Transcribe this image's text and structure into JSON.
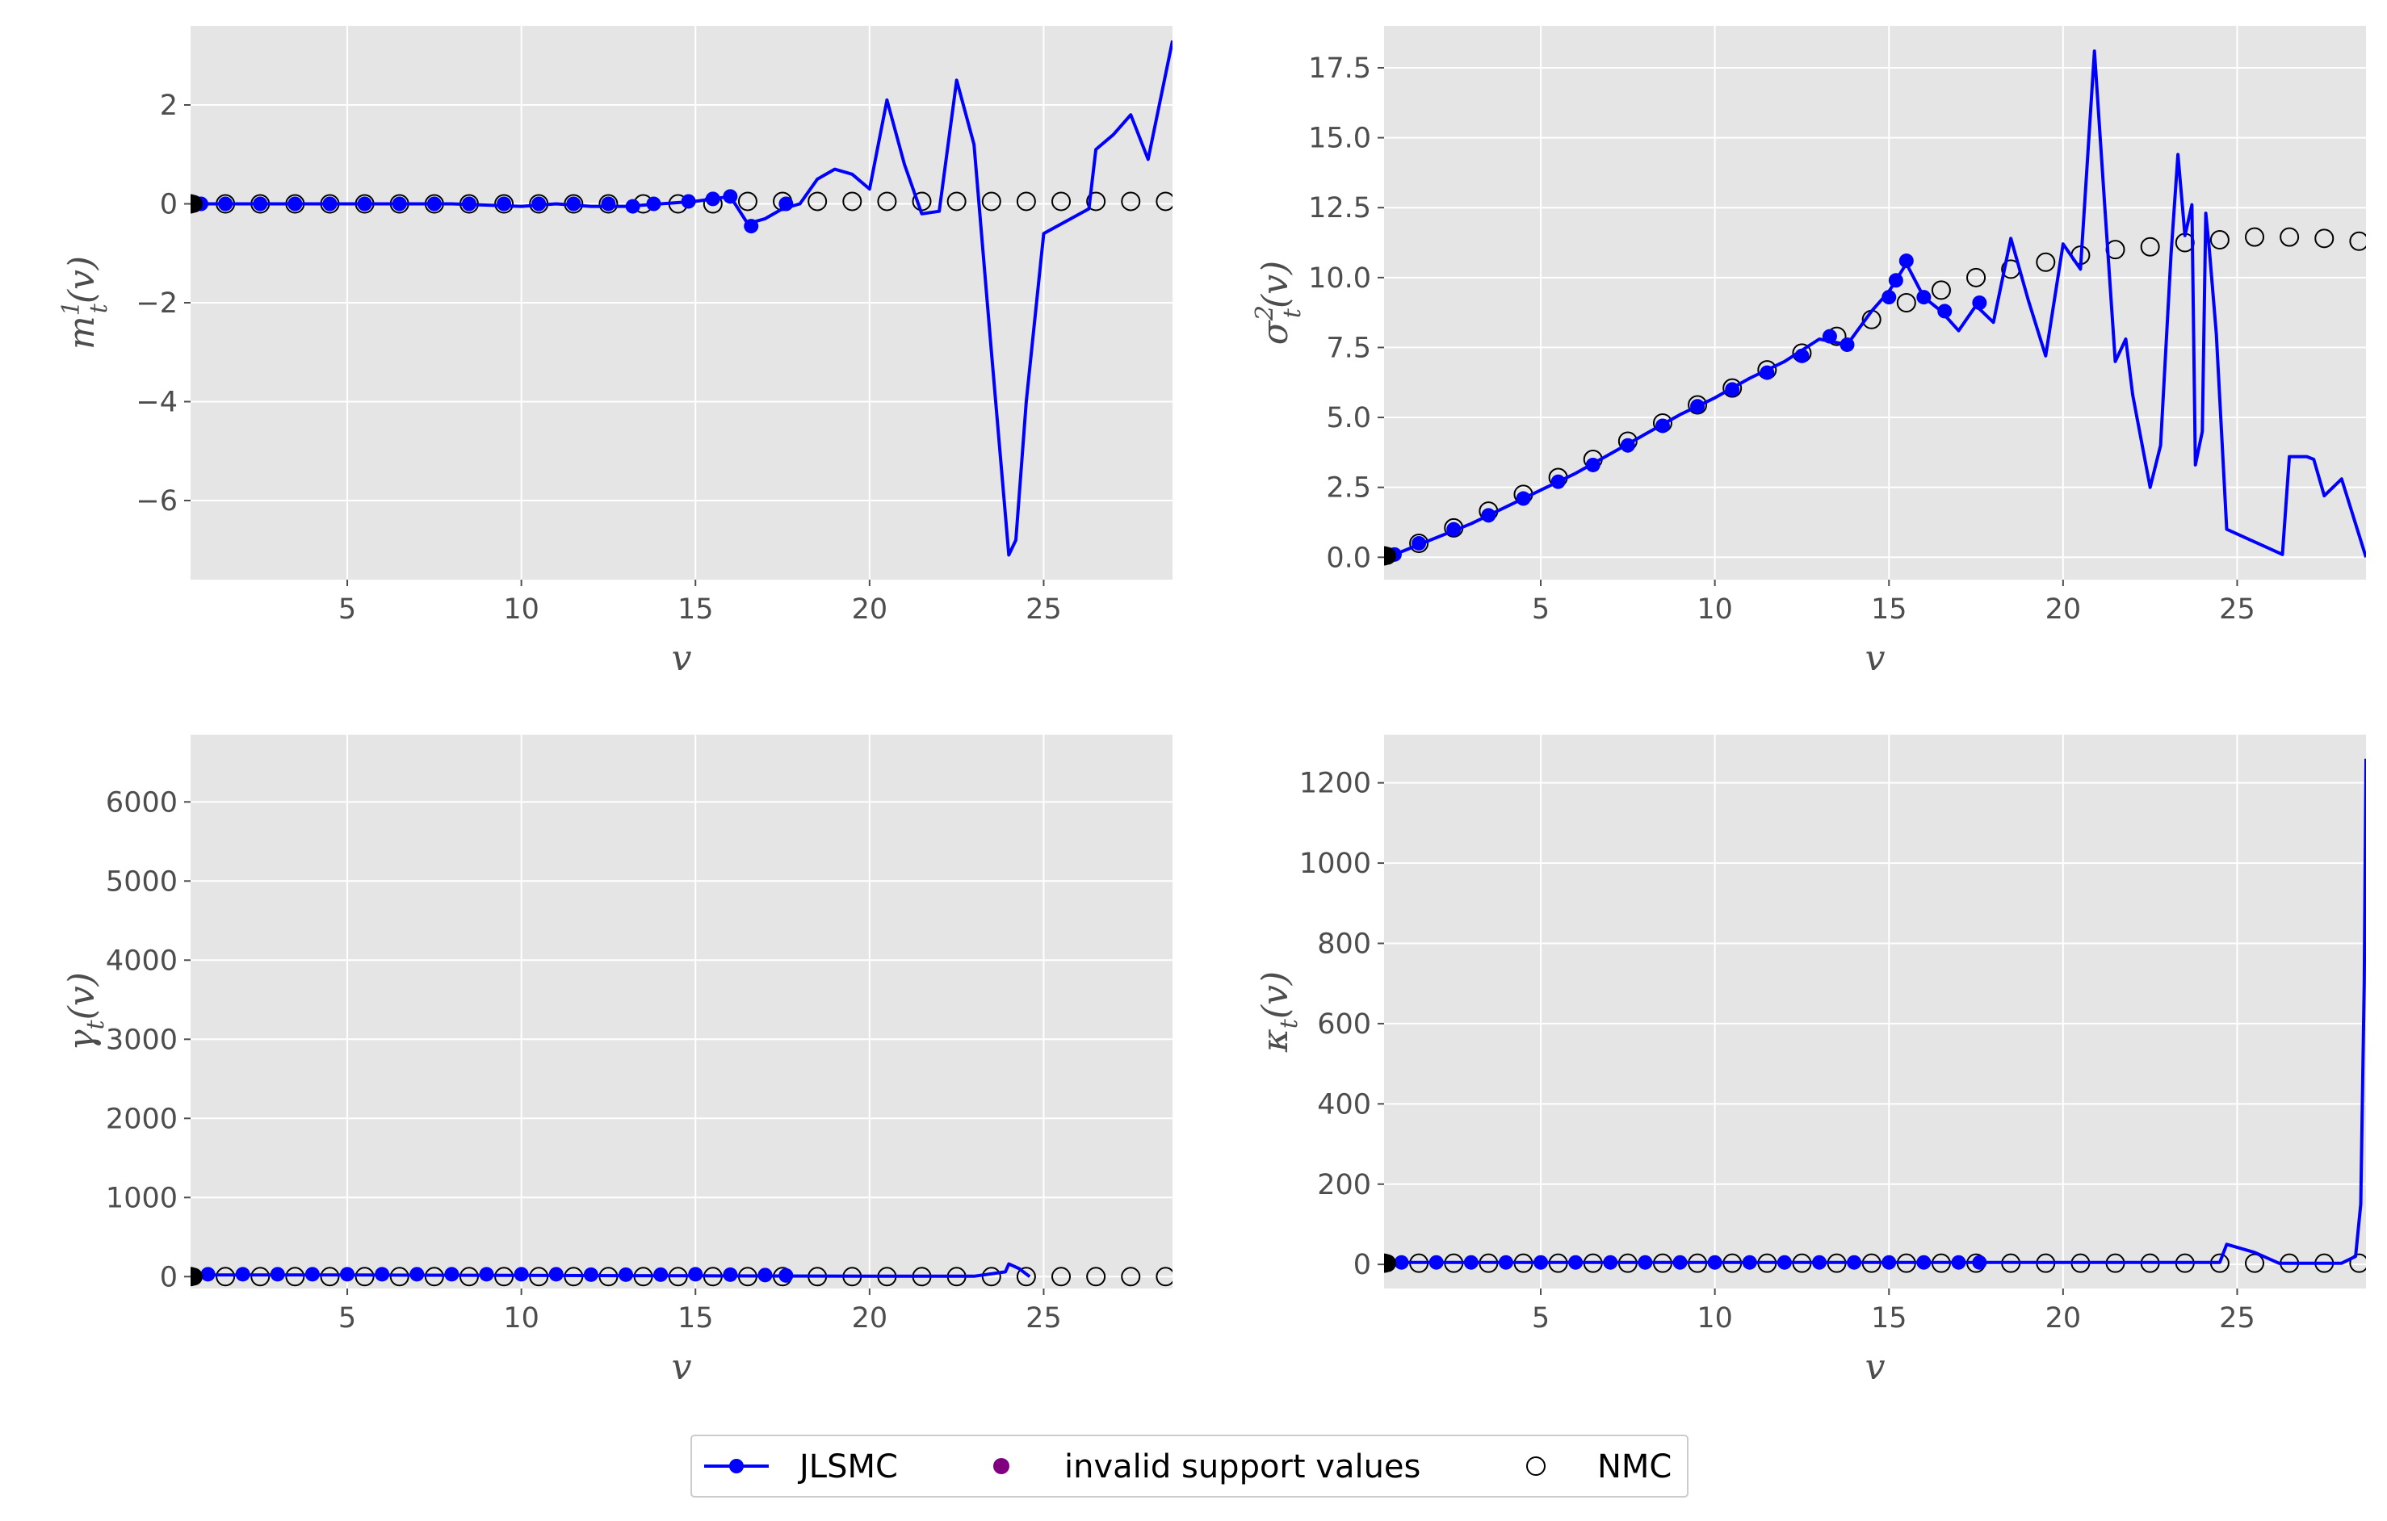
{
  "colors": {
    "panel_bg": "#e5e5e5",
    "grid": "#ffffff",
    "jlsmc": "#0000ff",
    "invalid": "#800080",
    "nmc_edge": "#000000",
    "tick": "#4d4d4d"
  },
  "legend": {
    "placement": "bottom-center",
    "entries": [
      {
        "label": "JLSMC",
        "marker": "line-with-dot",
        "color": "#0000ff"
      },
      {
        "label": "invalid support values",
        "marker": "dot",
        "color": "#800080"
      },
      {
        "label": "NMC",
        "marker": "open-circle",
        "color": "#000000"
      }
    ]
  },
  "chart_data": [
    {
      "type": "line",
      "xlabel": "v",
      "ylabel": {
        "base": "m",
        "sub": "t",
        "sup": "1",
        "arg": "(v)"
      },
      "xlim": [
        0.5,
        28.7
      ],
      "ylim": [
        -7.6,
        3.6
      ],
      "grid": true,
      "xticks": [
        5,
        10,
        15,
        20,
        25
      ],
      "xtick_labels": [
        "5",
        "10",
        "15",
        "20",
        "25"
      ],
      "yticks": [
        -6,
        -4,
        -2,
        0,
        2
      ],
      "ytick_labels": [
        "−6",
        "−4",
        "−2",
        "0",
        "2"
      ],
      "series": [
        {
          "name": "JLSMC",
          "style": "line",
          "x": [
            0.5,
            2,
            4,
            6,
            8,
            10,
            11,
            12,
            13,
            14,
            15,
            15.5,
            16,
            16.5,
            17,
            17.5,
            18,
            18.5,
            19,
            19.5,
            20,
            20.5,
            21,
            21.5,
            22,
            22.5,
            23,
            23.5,
            24,
            24.2,
            24.5,
            25,
            26.3,
            26.5,
            27,
            27.5,
            28,
            28.7
          ],
          "y": [
            0,
            0,
            0,
            0,
            0,
            -0.05,
            0,
            -0.05,
            -0.05,
            0,
            0.05,
            0.1,
            0.15,
            -0.4,
            -0.3,
            -0.1,
            0,
            0.5,
            0.7,
            0.6,
            0.3,
            2.1,
            0.8,
            -0.2,
            -0.15,
            2.5,
            1.2,
            -3.0,
            -7.1,
            -6.8,
            -4.0,
            -0.6,
            -0.1,
            1.1,
            1.4,
            1.8,
            0.9,
            3.3
          ]
        },
        {
          "name": "JLSMC",
          "style": "dots",
          "x": [
            0.8,
            1.5,
            2.5,
            3.5,
            4.5,
            5.5,
            6.5,
            7.5,
            8.5,
            9.5,
            10.5,
            11.5,
            12.5,
            13.2,
            13.8,
            14.8,
            15.5,
            16,
            16.6,
            17.6
          ],
          "y": [
            0,
            0,
            0,
            0,
            0,
            0,
            0,
            0,
            0,
            0,
            0,
            0,
            0,
            -0.05,
            0,
            0.05,
            0.1,
            0.15,
            -0.45,
            0
          ]
        },
        {
          "name": "NMC",
          "style": "open-circle",
          "x": [
            0.5,
            1.5,
            2.5,
            3.5,
            4.5,
            5.5,
            6.5,
            7.5,
            8.5,
            9.5,
            10.5,
            11.5,
            12.5,
            13.5,
            14.5,
            15.5,
            16.5,
            17.5,
            18.5,
            19.5,
            20.5,
            21.5,
            22.5,
            23.5,
            24.5,
            25.5,
            26.5,
            27.5,
            28.5
          ],
          "y": [
            0,
            0,
            0,
            0,
            0,
            0,
            0,
            0,
            0,
            0,
            0,
            0,
            0,
            0,
            0,
            0,
            0.05,
            0.05,
            0.05,
            0.05,
            0.05,
            0.05,
            0.05,
            0.05,
            0.05,
            0.05,
            0.05,
            0.05,
            0.05
          ]
        }
      ]
    },
    {
      "type": "line",
      "xlabel": "v",
      "ylabel": {
        "base": "σ",
        "sub": "t",
        "sup": "2",
        "arg": "(v)"
      },
      "xlim": [
        0.5,
        28.7
      ],
      "ylim": [
        -0.8,
        19.0
      ],
      "grid": true,
      "xticks": [
        5,
        10,
        15,
        20,
        25
      ],
      "xtick_labels": [
        "5",
        "10",
        "15",
        "20",
        "25"
      ],
      "yticks": [
        0,
        2.5,
        5,
        7.5,
        10,
        12.5,
        15,
        17.5
      ],
      "ytick_labels": [
        "0.0",
        "2.5",
        "5.0",
        "7.5",
        "10.0",
        "12.5",
        "15.0",
        "17.5"
      ],
      "series": [
        {
          "name": "JLSMC",
          "style": "line",
          "x": [
            0.5,
            1,
            2,
            3,
            4,
            5,
            6,
            7,
            8,
            9,
            10,
            11,
            12,
            13,
            13.8,
            14.5,
            15,
            15.5,
            16,
            16.5,
            17,
            17.5,
            18,
            18.5,
            19,
            19.5,
            20,
            20.5,
            20.9,
            21.2,
            21.5,
            21.8,
            22,
            22.5,
            22.8,
            23.1,
            23.3,
            23.5,
            23.7,
            23.8,
            24,
            24.1,
            24.2,
            24.4,
            24.7,
            26.3,
            26.5,
            27,
            27.2,
            27.5,
            28,
            28.7
          ],
          "y": [
            0,
            0.2,
            0.7,
            1.2,
            1.8,
            2.4,
            3.0,
            3.7,
            4.4,
            5.1,
            5.7,
            6.4,
            7.0,
            7.8,
            7.6,
            8.8,
            9.5,
            10.5,
            9.3,
            8.8,
            8.1,
            9.0,
            8.4,
            11.4,
            9.2,
            7.2,
            11.2,
            10.3,
            18.1,
            12.5,
            7.0,
            7.8,
            5.8,
            2.5,
            4.0,
            10.8,
            14.4,
            11.5,
            12.6,
            3.3,
            4.5,
            12.3,
            11.0,
            8.0,
            1.0,
            0.1,
            3.6,
            3.6,
            3.5,
            2.2,
            2.8,
            0.0
          ]
        },
        {
          "name": "JLSMC",
          "style": "dots",
          "x": [
            0.8,
            1.5,
            2.5,
            3.5,
            4.5,
            5.5,
            6.5,
            7.5,
            8.5,
            9.5,
            10.5,
            11.5,
            12.5,
            13.3,
            13.8,
            15,
            15.2,
            15.5,
            16,
            16.6,
            17.6
          ],
          "y": [
            0.1,
            0.5,
            1.0,
            1.5,
            2.1,
            2.7,
            3.3,
            4.0,
            4.7,
            5.4,
            6.0,
            6.6,
            7.2,
            7.9,
            7.6,
            9.3,
            9.9,
            10.6,
            9.3,
            8.8,
            9.1
          ]
        },
        {
          "name": "NMC",
          "style": "open-circle",
          "x": [
            0.5,
            1.5,
            2.5,
            3.5,
            4.5,
            5.5,
            6.5,
            7.5,
            8.5,
            9.5,
            10.5,
            11.5,
            12.5,
            13.5,
            14.5,
            15.5,
            16.5,
            17.5,
            18.5,
            19.5,
            20.5,
            21.5,
            22.5,
            23.5,
            24.5,
            25.5,
            26.5,
            27.5,
            28.5
          ],
          "y": [
            0.05,
            0.5,
            1.05,
            1.65,
            2.25,
            2.85,
            3.5,
            4.15,
            4.8,
            5.45,
            6.05,
            6.7,
            7.3,
            7.9,
            8.5,
            9.1,
            9.55,
            10.0,
            10.3,
            10.55,
            10.8,
            11.0,
            11.1,
            11.25,
            11.35,
            11.45,
            11.45,
            11.4,
            11.3
          ]
        }
      ]
    },
    {
      "type": "line",
      "xlabel": "v",
      "ylabel": {
        "base": "γ",
        "sub": "t",
        "sup": "",
        "arg": "(v)"
      },
      "xlim": [
        0.5,
        28.7
      ],
      "ylim": [
        -150,
        6850
      ],
      "grid": true,
      "xticks": [
        5,
        10,
        15,
        20,
        25
      ],
      "xtick_labels": [
        "5",
        "10",
        "15",
        "20",
        "25"
      ],
      "yticks": [
        0,
        1000,
        2000,
        3000,
        4000,
        5000,
        6000
      ],
      "ytick_labels": [
        "0",
        "1000",
        "2000",
        "3000",
        "4000",
        "5000",
        "6000"
      ],
      "series": [
        {
          "name": "JLSMC",
          "style": "line",
          "x": [
            0.5,
            5,
            10,
            15,
            20,
            23,
            23.9,
            24.0,
            24.3,
            24.6
          ],
          "y": [
            20,
            20,
            15,
            10,
            5,
            5,
            60,
            160,
            100,
            0
          ]
        },
        {
          "name": "JLSMC",
          "style": "dots",
          "x": [
            1,
            2,
            3,
            4,
            5,
            6,
            7,
            8,
            9,
            10,
            11,
            12,
            13,
            14,
            15,
            16,
            17,
            17.6
          ],
          "y": [
            30,
            30,
            30,
            30,
            30,
            30,
            30,
            30,
            30,
            30,
            30,
            25,
            25,
            25,
            30,
            25,
            20,
            15
          ]
        },
        {
          "name": "NMC",
          "style": "open-circle",
          "x": [
            0.5,
            1.5,
            2.5,
            3.5,
            4.5,
            5.5,
            6.5,
            7.5,
            8.5,
            9.5,
            10.5,
            11.5,
            12.5,
            13.5,
            14.5,
            15.5,
            16.5,
            17.5,
            18.5,
            19.5,
            20.5,
            21.5,
            22.5,
            23.5,
            24.5,
            25.5,
            26.5,
            27.5,
            28.5
          ],
          "y": [
            0,
            0,
            0,
            0,
            0,
            0,
            0,
            0,
            0,
            0,
            0,
            0,
            0,
            0,
            0,
            0,
            0,
            0,
            0,
            0,
            0,
            0,
            0,
            0,
            0,
            0,
            0,
            0,
            0
          ]
        }
      ]
    },
    {
      "type": "line",
      "xlabel": "v",
      "ylabel": {
        "base": "κ",
        "sub": "t",
        "sup": "",
        "arg": "(v)"
      },
      "xlim": [
        0.5,
        28.7
      ],
      "ylim": [
        -60,
        1320
      ],
      "grid": true,
      "xticks": [
        5,
        10,
        15,
        20,
        25
      ],
      "xtick_labels": [
        "5",
        "10",
        "15",
        "20",
        "25"
      ],
      "yticks": [
        0,
        200,
        400,
        600,
        800,
        1000,
        1200
      ],
      "ytick_labels": [
        "0",
        "200",
        "400",
        "600",
        "800",
        "1000",
        "1200"
      ],
      "series": [
        {
          "name": "JLSMC",
          "style": "line",
          "x": [
            0.5,
            5,
            10,
            15,
            20,
            24.5,
            24.7,
            25.5,
            26.2,
            27,
            28,
            28.4,
            28.55,
            28.65,
            28.7
          ],
          "y": [
            5,
            5,
            5,
            5,
            5,
            5,
            50,
            30,
            3,
            3,
            3,
            20,
            150,
            700,
            1260
          ]
        },
        {
          "name": "JLSMC",
          "style": "dots",
          "x": [
            1,
            2,
            3,
            4,
            5,
            6,
            7,
            8,
            9,
            10,
            11,
            12,
            13,
            14,
            15,
            16,
            17,
            17.6
          ],
          "y": [
            5,
            5,
            5,
            5,
            5,
            5,
            5,
            5,
            5,
            5,
            5,
            5,
            5,
            5,
            5,
            5,
            5,
            5
          ]
        },
        {
          "name": "NMC",
          "style": "open-circle",
          "x": [
            0.5,
            1.5,
            2.5,
            3.5,
            4.5,
            5.5,
            6.5,
            7.5,
            8.5,
            9.5,
            10.5,
            11.5,
            12.5,
            13.5,
            14.5,
            15.5,
            16.5,
            17.5,
            18.5,
            19.5,
            20.5,
            21.5,
            22.5,
            23.5,
            24.5,
            25.5,
            26.5,
            27.5,
            28.5
          ],
          "y": [
            3,
            3,
            3,
            3,
            3,
            3,
            3,
            3,
            3,
            3,
            3,
            3,
            3,
            3,
            3,
            3,
            3,
            3,
            3,
            3,
            3,
            3,
            3,
            3,
            3,
            3,
            3,
            3,
            3
          ]
        }
      ]
    }
  ]
}
